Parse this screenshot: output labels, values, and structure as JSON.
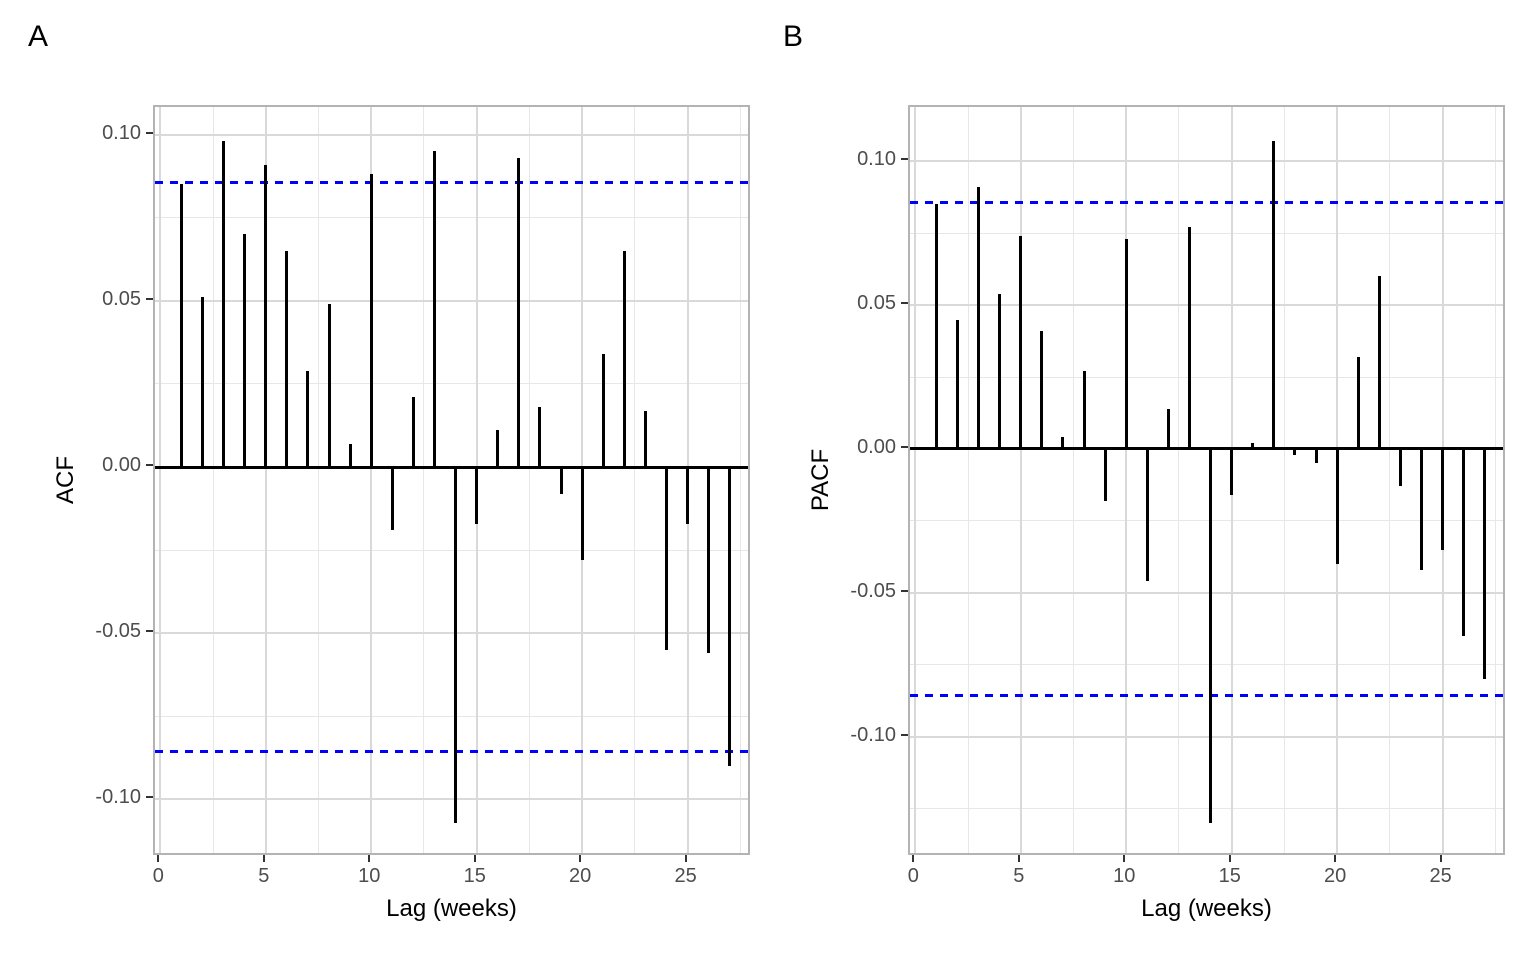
{
  "figure_labels": {
    "panel_a": "A",
    "panel_b": "B"
  },
  "colors": {
    "bar": "#000000",
    "confidence_bound": "#0000ff",
    "grid_major": "#d9d9d9",
    "grid_minor": "#e7e7e7",
    "panel_border": "#b3b3b3",
    "tick_text": "#4d4d4d",
    "axis_title_text": "#000000"
  },
  "chart_data": [
    {
      "type": "bar",
      "panel_label": "A",
      "ylabel": "ACF",
      "xlabel": "Lag (weeks)",
      "x": [
        1,
        2,
        3,
        4,
        5,
        6,
        7,
        8,
        9,
        10,
        11,
        12,
        13,
        14,
        15,
        16,
        17,
        18,
        19,
        20,
        21,
        22,
        23,
        24,
        25,
        26,
        27
      ],
      "values": [
        0.085,
        0.051,
        0.098,
        0.07,
        0.091,
        0.065,
        0.029,
        0.049,
        0.007,
        0.088,
        -0.019,
        0.021,
        0.095,
        -0.107,
        -0.017,
        0.011,
        0.093,
        0.018,
        -0.008,
        -0.028,
        0.034,
        0.065,
        0.017,
        -0.055,
        -0.017,
        -0.056,
        -0.09
      ],
      "confidence_bound": 0.0857,
      "bound_style": "dashed",
      "bound_color": "#0000ff",
      "bar_color": "#000000",
      "xlim": [
        -0.25,
        28.05
      ],
      "ylim": [
        -0.1173,
        0.1083
      ],
      "x_ticks": [
        0,
        5,
        10,
        15,
        20,
        25
      ],
      "y_ticks": [
        0.1,
        0.05,
        0.0,
        -0.05,
        -0.1
      ],
      "x_minor": [
        2.5,
        7.5,
        12.5,
        17.5,
        22.5,
        27.5
      ],
      "y_minor": [
        0.075,
        0.025,
        -0.025,
        -0.075,
        -0.125
      ],
      "grid": true,
      "legend": "none"
    },
    {
      "type": "bar",
      "panel_label": "B",
      "ylabel": "PACF",
      "xlabel": "Lag (weeks)",
      "x": [
        1,
        2,
        3,
        4,
        5,
        6,
        7,
        8,
        9,
        10,
        11,
        12,
        13,
        14,
        15,
        16,
        17,
        18,
        19,
        20,
        21,
        22,
        23,
        24,
        25,
        26,
        27
      ],
      "values": [
        0.085,
        0.045,
        0.091,
        0.054,
        0.074,
        0.041,
        0.004,
        0.027,
        -0.018,
        0.073,
        -0.046,
        0.014,
        0.077,
        -0.13,
        -0.016,
        0.002,
        0.107,
        -0.002,
        -0.005,
        -0.04,
        0.032,
        0.06,
        -0.013,
        -0.042,
        -0.035,
        -0.065,
        -0.08
      ],
      "confidence_bound": 0.0857,
      "bound_style": "dashed",
      "bound_color": "#0000ff",
      "bar_color": "#000000",
      "xlim": [
        -0.25,
        28.05
      ],
      "ylim": [
        -0.1419,
        0.1189
      ],
      "x_ticks": [
        0,
        5,
        10,
        15,
        20,
        25
      ],
      "y_ticks": [
        0.1,
        0.05,
        0.0,
        -0.05,
        -0.1
      ],
      "x_minor": [
        2.5,
        7.5,
        12.5,
        17.5,
        22.5,
        27.5
      ],
      "y_minor": [
        0.075,
        0.025,
        -0.025,
        -0.075,
        -0.125
      ],
      "grid": true,
      "legend": "none"
    }
  ]
}
